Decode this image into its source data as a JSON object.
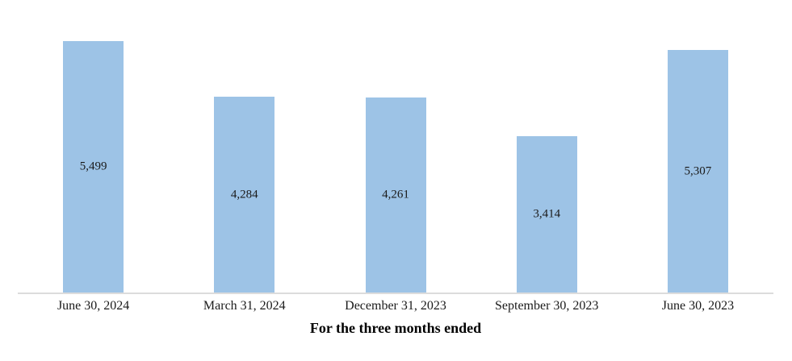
{
  "chart_data": {
    "type": "bar",
    "title": "",
    "categories": [
      "June 30, 2024",
      "March 31, 2024",
      "December 31, 2023",
      "September 30, 2023",
      "June 30, 2023"
    ],
    "values": [
      5499,
      4284,
      4261,
      3414,
      5307
    ],
    "value_labels": [
      "5,499",
      "4,284",
      "4,261",
      "3,414",
      "5,307"
    ],
    "xlabel": "For the three months ended",
    "ylabel": "",
    "ylim": [
      0,
      6400
    ],
    "grid": false,
    "legend": false,
    "bar_label_position": "center",
    "y_axis_visible": false
  },
  "colors": {
    "bar_fill": "#9DC3E6",
    "axis_line": "#DCDCDC",
    "bar_label_text": "#1A1A1A",
    "tick_label_text": "#1A1A1A",
    "axis_title_text": "#000000"
  }
}
